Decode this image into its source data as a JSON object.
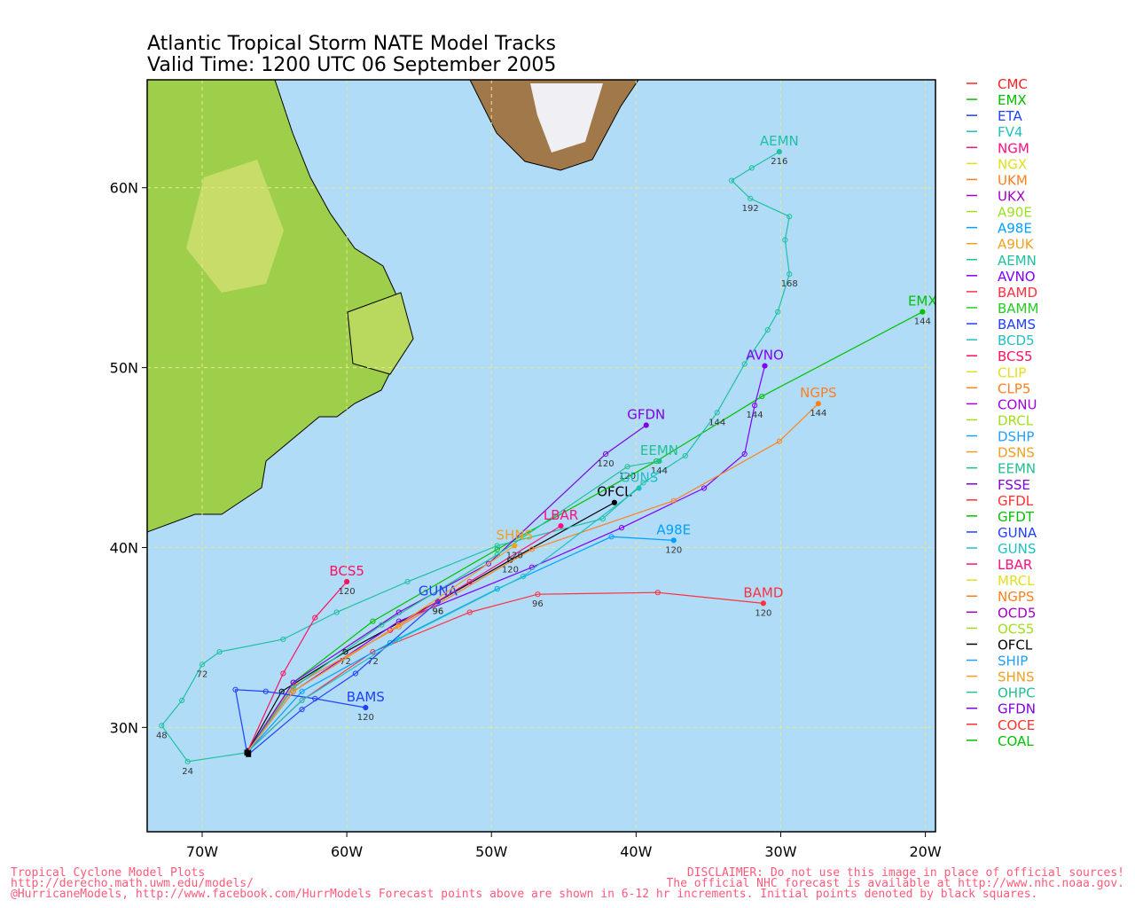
{
  "map": {
    "title": "Atlantic Tropical Storm NATE Model Tracks",
    "subtitle": "Valid Time: 1200 UTC 06 September 2005",
    "xlim": [
      -73.8,
      -19.3
    ],
    "ylim": [
      24.2,
      66.0
    ],
    "xticks": [
      {
        "value": -70,
        "label": "70W"
      },
      {
        "value": -60,
        "label": "60W"
      },
      {
        "value": -50,
        "label": "50W"
      },
      {
        "value": -40,
        "label": "40W"
      },
      {
        "value": -30,
        "label": "30W"
      },
      {
        "value": -20,
        "label": "20W"
      }
    ],
    "yticks": [
      {
        "value": 30,
        "label": "30N"
      },
      {
        "value": 40,
        "label": "40N"
      },
      {
        "value": 50,
        "label": "50N"
      },
      {
        "value": 60,
        "label": "60N"
      }
    ],
    "grid": true,
    "legend": [
      {
        "name": "CMC",
        "color": "#ff2020"
      },
      {
        "name": "EMX",
        "color": "#00c000"
      },
      {
        "name": "ETA",
        "color": "#2040ff"
      },
      {
        "name": "FV4",
        "color": "#20c0c0"
      },
      {
        "name": "NGM",
        "color": "#ff1080"
      },
      {
        "name": "NGX",
        "color": "#e0e020"
      },
      {
        "name": "UKM",
        "color": "#ff8020"
      },
      {
        "name": "UKX",
        "color": "#a000c0"
      },
      {
        "name": "A90E",
        "color": "#a0e020"
      },
      {
        "name": "A98E",
        "color": "#00a0ff"
      },
      {
        "name": "A9UK",
        "color": "#f0a020"
      },
      {
        "name": "AEMN",
        "color": "#20c0a0"
      },
      {
        "name": "AVNO",
        "color": "#8000ff"
      },
      {
        "name": "BAMD",
        "color": "#ff3040"
      },
      {
        "name": "BAMM",
        "color": "#20d020"
      },
      {
        "name": "BAMS",
        "color": "#2040ff"
      },
      {
        "name": "BCD5",
        "color": "#20c0c0"
      },
      {
        "name": "BCS5",
        "color": "#ff1060"
      },
      {
        "name": "CLIP",
        "color": "#e0e020"
      },
      {
        "name": "CLP5",
        "color": "#ff8020"
      },
      {
        "name": "CONU",
        "color": "#a000e0"
      },
      {
        "name": "DRCL",
        "color": "#a0e020"
      },
      {
        "name": "DSHP",
        "color": "#20a0ff"
      },
      {
        "name": "DSNS",
        "color": "#f0a020"
      },
      {
        "name": "EEMN",
        "color": "#20c090"
      },
      {
        "name": "FSSE",
        "color": "#8000e0"
      },
      {
        "name": "GFDL",
        "color": "#ff3030"
      },
      {
        "name": "GFDT",
        "color": "#00c000"
      },
      {
        "name": "GUNA",
        "color": "#2040ff"
      },
      {
        "name": "GUNS",
        "color": "#20c0c0"
      },
      {
        "name": "LBAR",
        "color": "#ff1080"
      },
      {
        "name": "MRCL",
        "color": "#e0e020"
      },
      {
        "name": "NGPS",
        "color": "#ff8020"
      },
      {
        "name": "OCD5",
        "color": "#a000c0"
      },
      {
        "name": "OCS5",
        "color": "#a0e020"
      },
      {
        "name": "OFCL",
        "color": "#000000"
      },
      {
        "name": "SHIP",
        "color": "#20a0ff"
      },
      {
        "name": "SHNS",
        "color": "#f0a020"
      },
      {
        "name": "OHPC",
        "color": "#20c090"
      },
      {
        "name": "GFDN",
        "color": "#8000e0"
      },
      {
        "name": "COCE",
        "color": "#ff3030"
      },
      {
        "name": "COAL",
        "color": "#00c000"
      }
    ],
    "tracks": [
      {
        "name": "OFCL",
        "color": "#000000",
        "lon": [
          -66.9,
          -64.5,
          -60.1,
          -53.7,
          -48.7,
          -41.5
        ],
        "lat": [
          28.6,
          32.0,
          34.2,
          37.0,
          39.3,
          42.5
        ],
        "hours": [
          null,
          null,
          72,
          96,
          120,
          null
        ]
      },
      {
        "name": "EMX",
        "color": "#00c000",
        "lon": [
          -66.9,
          -63.7,
          -58.2,
          -49.6,
          -38.6,
          -31.3,
          -20.2
        ],
        "lat": [
          28.6,
          32.5,
          35.9,
          39.9,
          44.8,
          48.4,
          53.1
        ],
        "hours": [
          null,
          null,
          null,
          null,
          null,
          null,
          144
        ]
      },
      {
        "name": "BAMD",
        "color": "#ff3040",
        "lon": [
          -66.8,
          -63.1,
          -58.2,
          -51.5,
          -46.8,
          -38.5,
          -31.2
        ],
        "lat": [
          28.7,
          31.5,
          34.2,
          36.4,
          37.4,
          37.5,
          36.9
        ],
        "hours": [
          null,
          null,
          72,
          null,
          96,
          null,
          120
        ]
      },
      {
        "name": "AEMN",
        "color": "#20c0a0",
        "lon": [
          -66.9,
          -71.0,
          -72.8,
          -71.4,
          -70.0,
          -68.8,
          -64.4,
          -60.7,
          -55.8,
          -49.6,
          -42.3,
          -39.5,
          -36.6,
          -34.4,
          -32.5,
          -30.9,
          -30.2,
          -29.4,
          -29.7,
          -29.4,
          -32.1,
          -33.4,
          -32.0,
          -30.1
        ],
        "lat": [
          28.6,
          28.1,
          30.1,
          31.5,
          33.5,
          34.2,
          34.9,
          36.4,
          38.1,
          40.1,
          41.6,
          43.6,
          45.1,
          47.5,
          50.2,
          52.1,
          53.1,
          55.2,
          57.1,
          58.4,
          59.4,
          60.4,
          61.1,
          62.0
        ],
        "hours": [
          null,
          24,
          48,
          null,
          72,
          null,
          null,
          null,
          null,
          null,
          null,
          null,
          null,
          144,
          null,
          null,
          null,
          168,
          null,
          null,
          192,
          null,
          null,
          216
        ]
      },
      {
        "name": "AVNO",
        "color": "#8000ff",
        "lon": [
          -66.9,
          -63.7,
          -56.4,
          -47.2,
          -41.0,
          -35.3,
          -32.5,
          -31.8,
          -31.1
        ],
        "lat": [
          28.6,
          32.0,
          35.9,
          38.9,
          41.1,
          43.3,
          45.2,
          47.9,
          50.1
        ],
        "hours": [
          null,
          null,
          null,
          null,
          null,
          null,
          null,
          144,
          null
        ]
      },
      {
        "name": "NGPS",
        "color": "#ff8020",
        "lon": [
          -66.9,
          -63.7,
          -56.4,
          -47.2,
          -37.4,
          -30.1,
          -27.4
        ],
        "lat": [
          28.6,
          32.3,
          35.6,
          39.9,
          42.6,
          45.9,
          48.0
        ],
        "hours": [
          null,
          null,
          null,
          null,
          null,
          null,
          144
        ]
      },
      {
        "name": "GFDN",
        "color": "#8000e0",
        "lon": [
          -66.9,
          -63.7,
          -56.4,
          -50.2,
          -42.1,
          -39.3
        ],
        "lat": [
          28.6,
          32.5,
          36.4,
          39.1,
          45.2,
          46.8
        ],
        "hours": [
          null,
          null,
          null,
          null,
          120,
          null
        ]
      },
      {
        "name": "EEMN",
        "color": "#20c090",
        "lon": [
          -66.9,
          -63.7,
          -57.6,
          -49.6,
          -40.6,
          -38.4
        ],
        "lat": [
          28.6,
          32.2,
          35.7,
          39.6,
          44.5,
          44.8
        ],
        "hours": [
          null,
          null,
          null,
          null,
          120,
          144
        ]
      },
      {
        "name": "A98E",
        "color": "#00a0ff",
        "lon": [
          -66.9,
          -63.1,
          -57.0,
          -49.6,
          -41.7,
          -37.4
        ],
        "lat": [
          28.6,
          32.0,
          34.7,
          37.7,
          40.6,
          40.4
        ],
        "hours": [
          null,
          null,
          null,
          null,
          null,
          120
        ]
      },
      {
        "name": "GUNA",
        "color": "#2040ff",
        "lon": [
          -66.8,
          -63.1,
          -59.4,
          -53.7
        ],
        "lat": [
          28.5,
          31.0,
          33.0,
          37.0
        ],
        "hours": [
          null,
          null,
          null,
          96
        ]
      },
      {
        "name": "BCS5",
        "color": "#ff1060",
        "lon": [
          -66.9,
          -64.4,
          -62.2,
          -60.0
        ],
        "lat": [
          28.6,
          33.0,
          36.1,
          38.1
        ],
        "hours": [
          null,
          null,
          null,
          120
        ]
      },
      {
        "name": "BAMS",
        "color": "#2040ff",
        "lon": [
          -66.9,
          -67.7,
          -65.6,
          -62.2,
          -58.7
        ],
        "lat": [
          28.6,
          32.1,
          32.0,
          31.6,
          31.1
        ],
        "hours": [
          null,
          null,
          null,
          null,
          120
        ]
      },
      {
        "name": "LBAR",
        "color": "#ff1080",
        "lon": [
          -66.9,
          -63.7,
          -57.0,
          -51.5,
          -45.2
        ],
        "lat": [
          28.6,
          32.0,
          35.4,
          38.1,
          41.2
        ],
        "hours": [
          null,
          null,
          null,
          null,
          null
        ]
      },
      {
        "name": "SHNS",
        "color": "#f0a020",
        "lon": [
          -66.9,
          -63.7,
          -56.4,
          -48.4
        ],
        "lat": [
          28.6,
          32.0,
          35.7,
          40.1
        ],
        "hours": [
          null,
          null,
          null,
          120
        ]
      },
      {
        "name": "GUNS",
        "color": "#20c0c0",
        "lon": [
          -66.9,
          -63.1,
          -56.4,
          -47.8,
          -39.8
        ],
        "lat": [
          28.6,
          31.5,
          34.9,
          38.4,
          43.3
        ],
        "hours": [
          null,
          null,
          null,
          null,
          null
        ]
      }
    ],
    "footer_left": [
      "Tropical Cyclone Model Plots",
      "http://derecho.math.uwm.edu/models/",
      "@HurricaneModels, http://www.facebook.com/HurrModels  Forecast points above are shown in 6-12 hr increments. Initial points denoted by black squares."
    ],
    "footer_right": [
      "DISCLAIMER: Do not use this image in place of official sources!",
      "The official NHC forecast is available at http://www.nhc.noaa.gov."
    ]
  }
}
